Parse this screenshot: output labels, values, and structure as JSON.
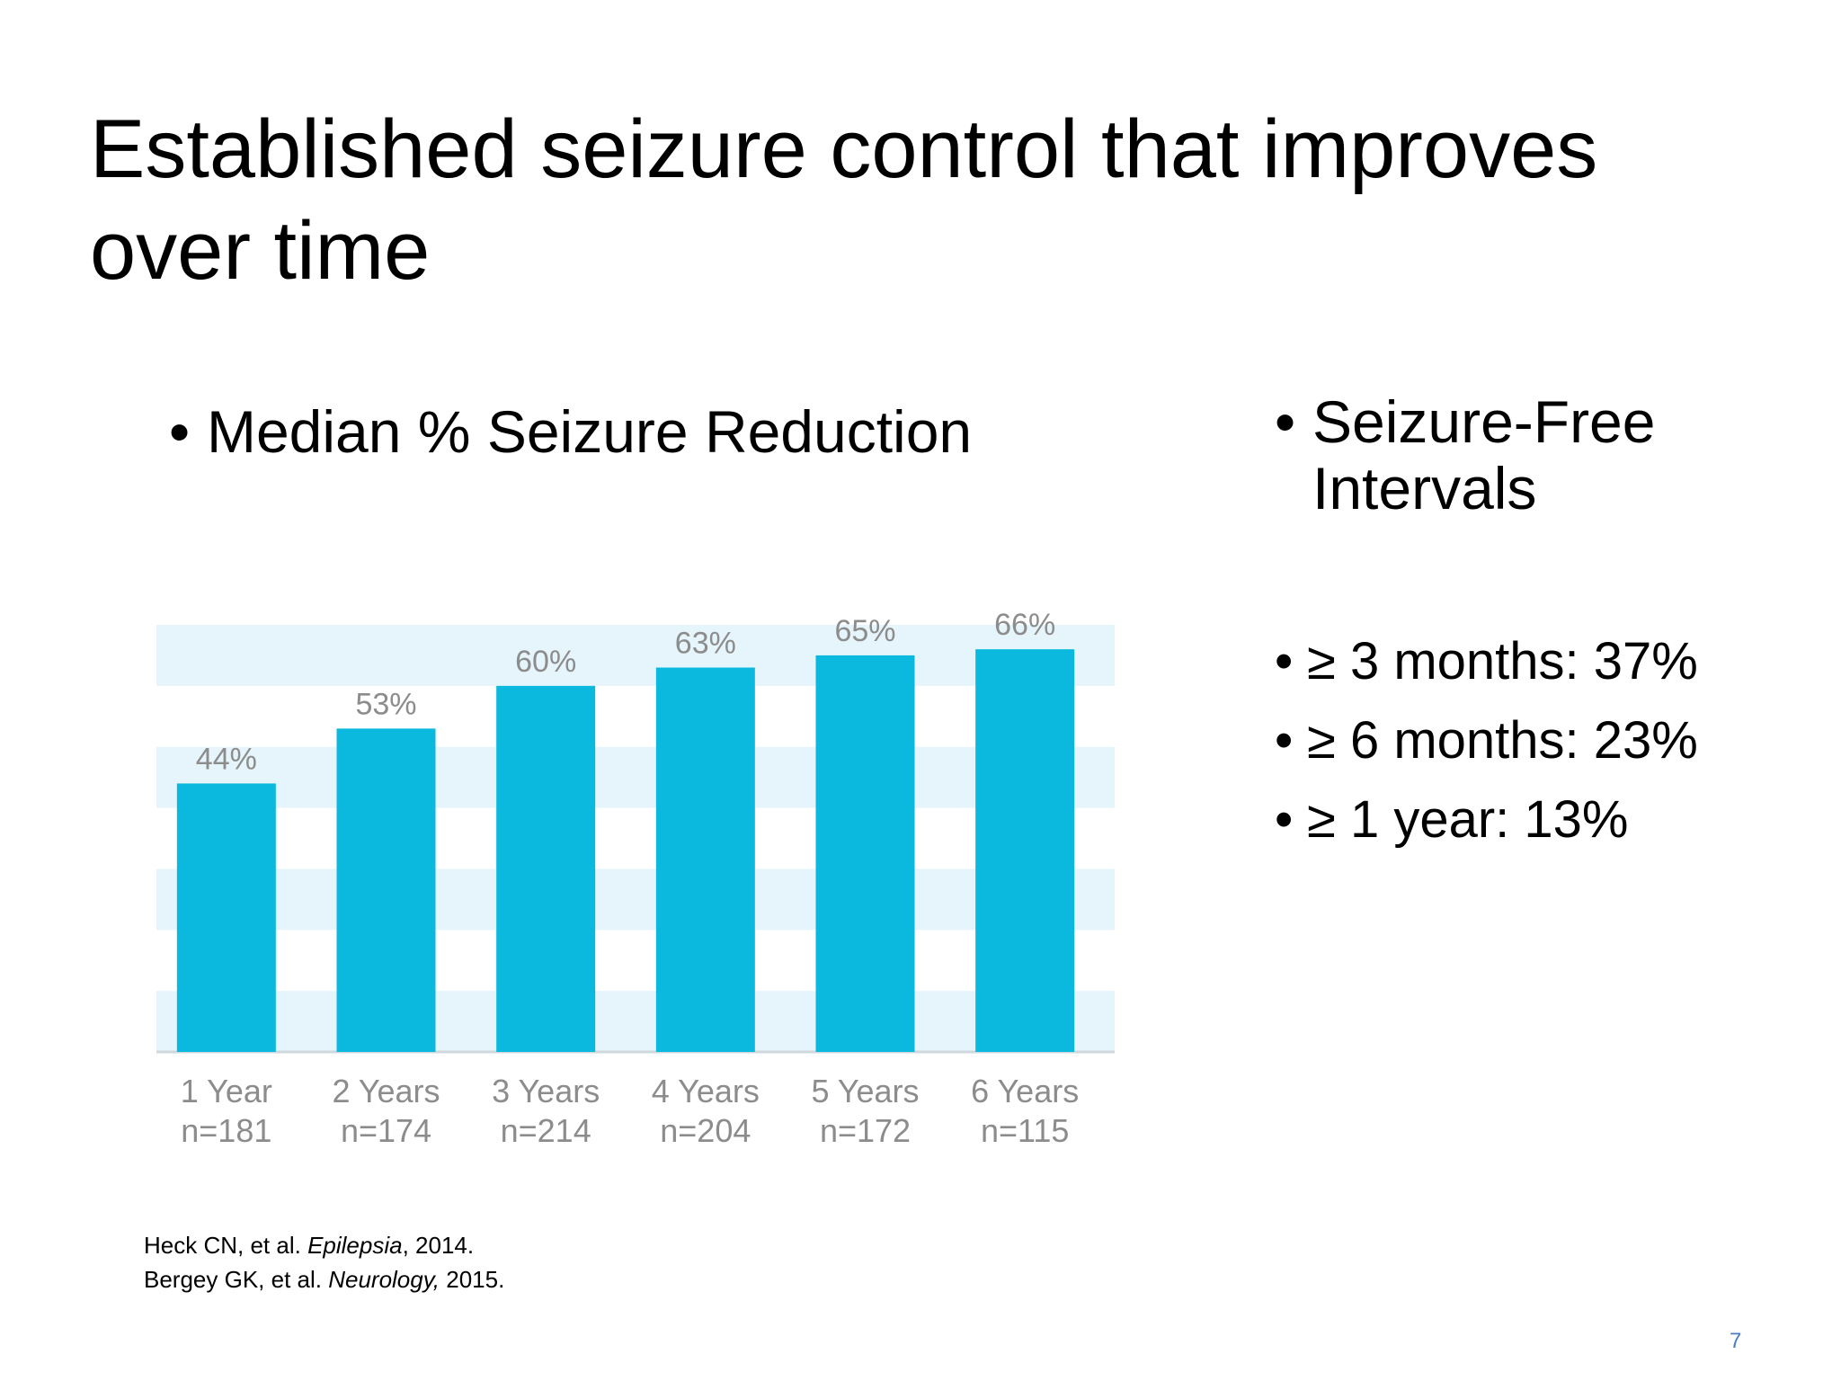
{
  "slide": {
    "title": "Established seizure control that improves over time",
    "left_heading": "Median % Seizure Reduction",
    "right_heading": "Seizure-Free Intervals",
    "bullet": "•",
    "intervals": [
      "≥ 3 months: 37%",
      "≥ 6 months: 23%",
      "≥ 1 year: 13%"
    ],
    "citations": [
      {
        "pre": "Heck CN, et al. ",
        "journal": "Epilepsia",
        "post": ", 2014."
      },
      {
        "pre": "Bergey GK, et al. ",
        "journal": "Neurology,",
        "post": " 2015."
      }
    ],
    "page_number": "7"
  },
  "chart_data": {
    "type": "bar",
    "categories": [
      "1 Year",
      "2 Years",
      "3 Years",
      "4 Years",
      "5 Years",
      "6 Years"
    ],
    "sample_sizes": [
      "n=181",
      "n=174",
      "n=214",
      "n=204",
      "n=172",
      "n=115"
    ],
    "values": [
      44,
      53,
      60,
      63,
      65,
      66
    ],
    "data_labels": [
      "44%",
      "53%",
      "60%",
      "63%",
      "65%",
      "66%"
    ],
    "ylim": [
      0,
      70
    ],
    "grid": "alternating horizontal bands",
    "colors": {
      "bar": "#0bb9de",
      "band": "#e6f5fb",
      "label": "#8c8c8c",
      "axis": "#cfd8dc"
    }
  }
}
